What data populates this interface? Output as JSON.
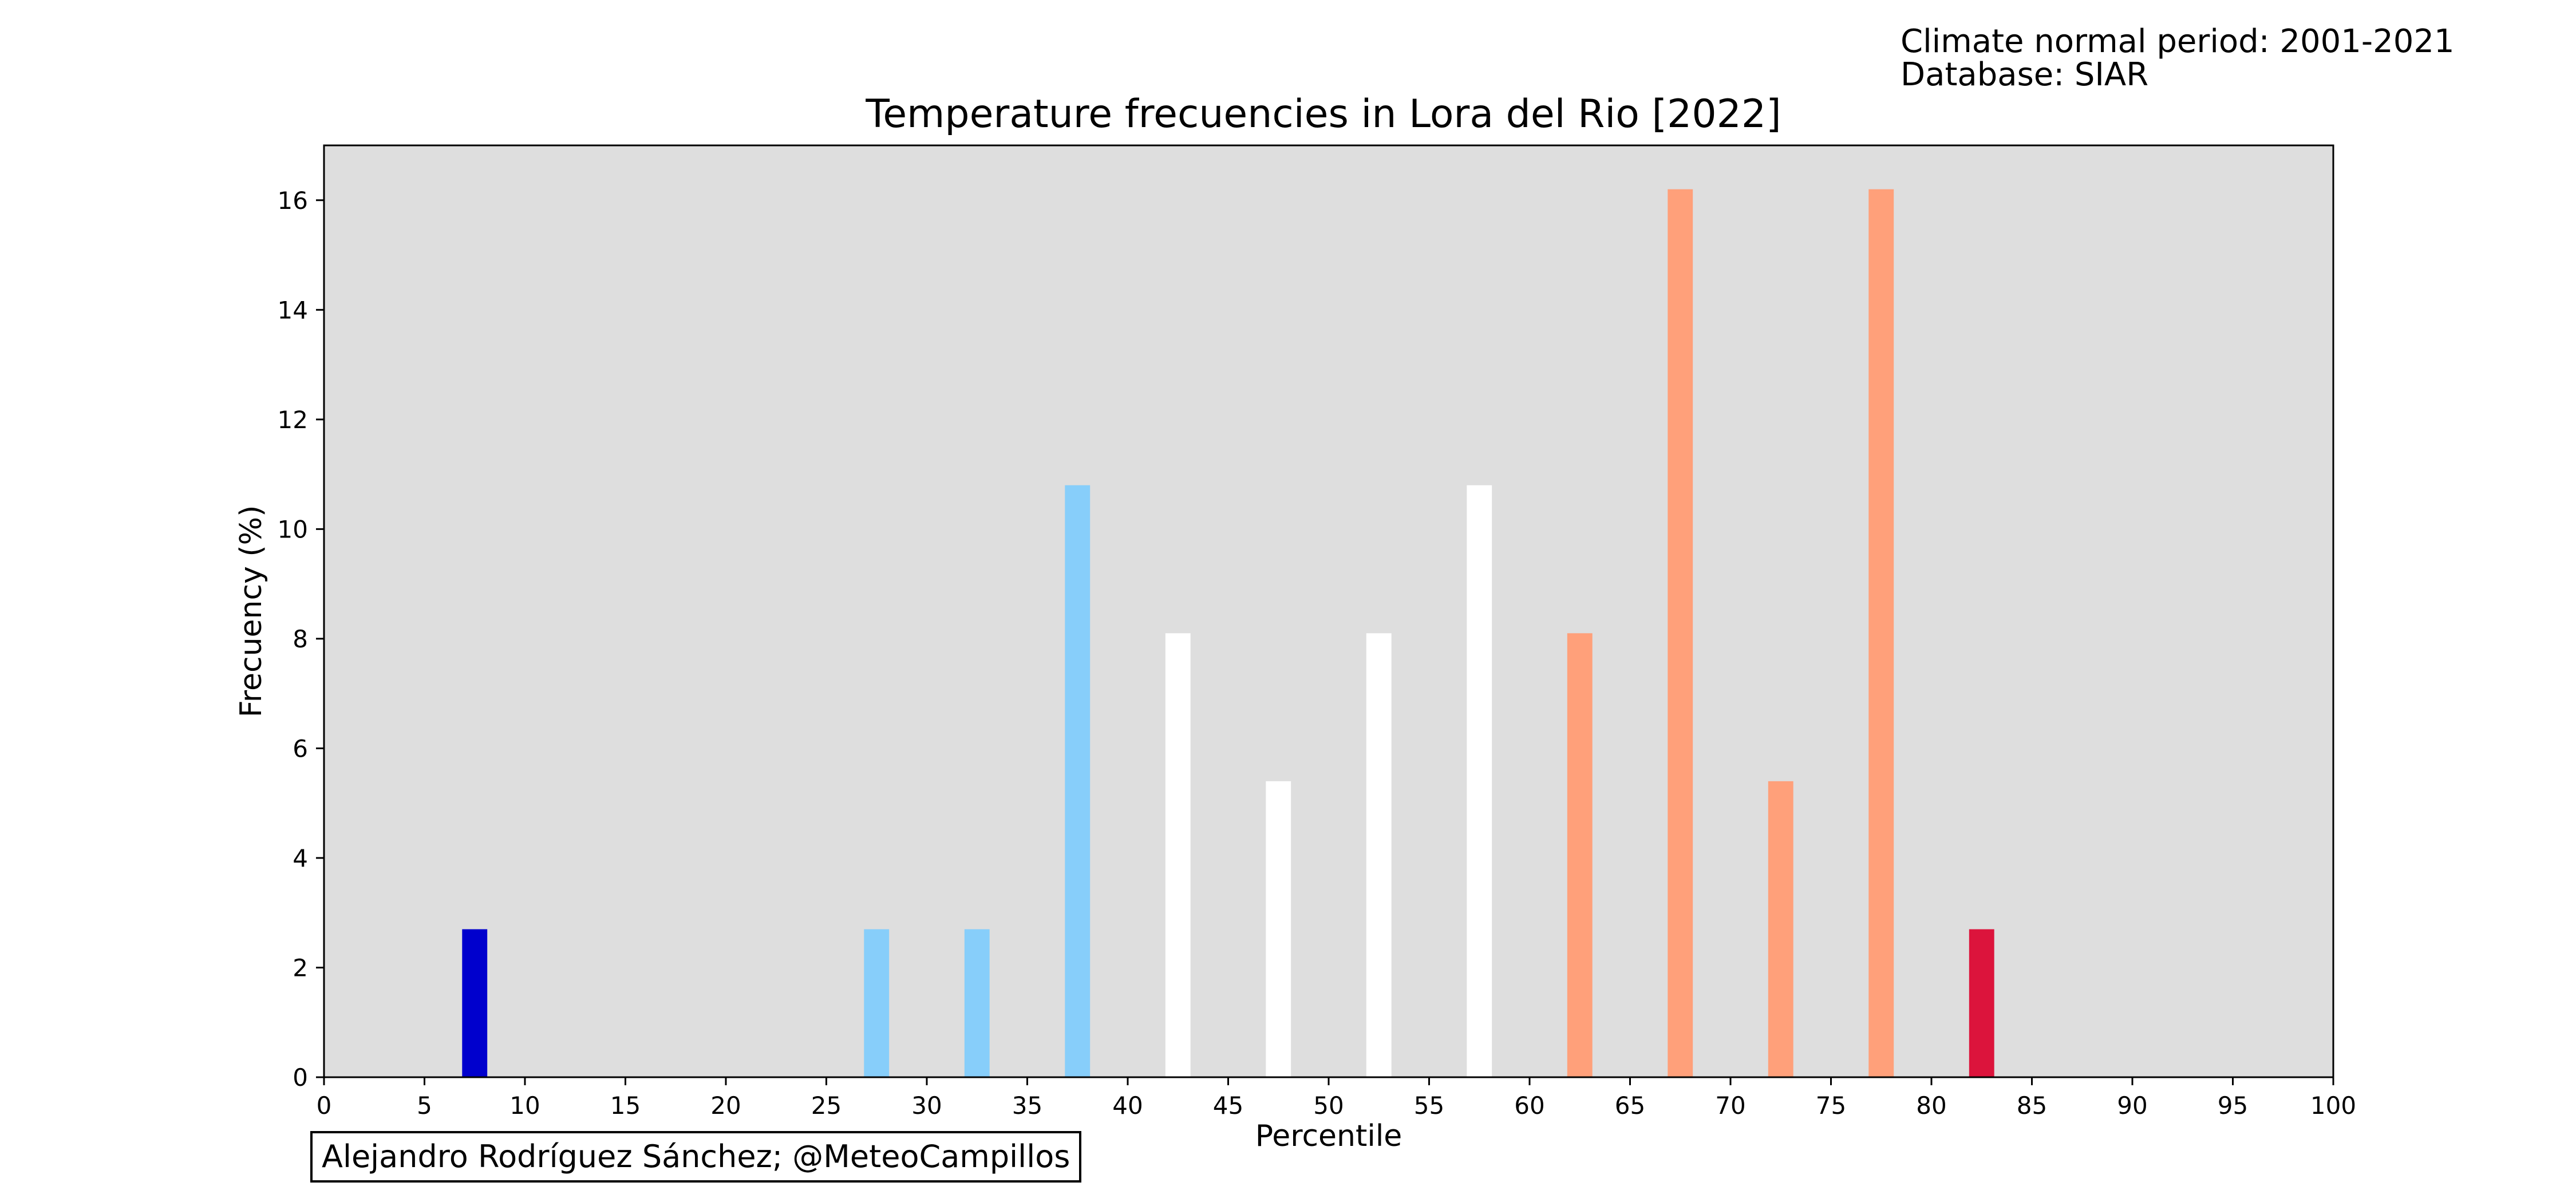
{
  "meta": {
    "period_line": "Climate normal period: 2001-2021",
    "database_line": "Database: SIAR"
  },
  "credit": "Alejandro Rodríguez Sánchez; @MeteoCampillos",
  "chart_data": {
    "type": "bar",
    "title": "Temperature frecuencies in Lora del Rio [2022]",
    "xlabel": "Percentile",
    "ylabel": "Frecuency (%)",
    "xlim": [
      0,
      100
    ],
    "ylim": [
      0,
      17
    ],
    "x_ticks": [
      0,
      5,
      10,
      15,
      20,
      25,
      30,
      35,
      40,
      45,
      50,
      55,
      60,
      65,
      70,
      75,
      80,
      85,
      90,
      95,
      100
    ],
    "y_ticks": [
      0,
      2,
      4,
      6,
      8,
      10,
      12,
      14,
      16
    ],
    "grid": false,
    "plot_background": "#dedede",
    "bars": [
      {
        "x": 7.5,
        "value": 2.7,
        "color": "#0000cd"
      },
      {
        "x": 27.5,
        "value": 2.7,
        "color": "#87cefa"
      },
      {
        "x": 32.5,
        "value": 2.7,
        "color": "#87cefa"
      },
      {
        "x": 37.5,
        "value": 10.8,
        "color": "#87cefa"
      },
      {
        "x": 42.5,
        "value": 8.1,
        "color": "#ffffff"
      },
      {
        "x": 47.5,
        "value": 5.4,
        "color": "#ffffff"
      },
      {
        "x": 52.5,
        "value": 8.1,
        "color": "#ffffff"
      },
      {
        "x": 57.5,
        "value": 10.8,
        "color": "#ffffff"
      },
      {
        "x": 62.5,
        "value": 8.1,
        "color": "#ffa07a"
      },
      {
        "x": 67.5,
        "value": 16.2,
        "color": "#ffa07a"
      },
      {
        "x": 72.5,
        "value": 5.4,
        "color": "#ffa07a"
      },
      {
        "x": 77.5,
        "value": 16.2,
        "color": "#ffa07a"
      },
      {
        "x": 82.5,
        "value": 2.7,
        "color": "#dc143c"
      }
    ],
    "bar_width": 1.25
  }
}
